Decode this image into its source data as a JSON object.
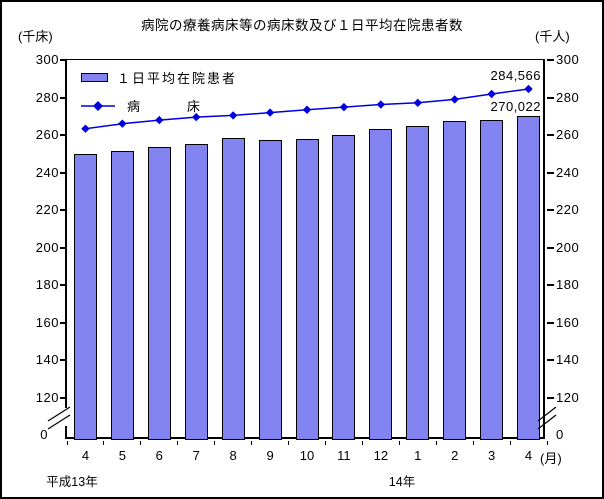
{
  "chart": {
    "title": "病院の療養病床等の病床数及び１日平均在院患者数",
    "left_unit": "(千床)",
    "right_unit": "(千人)",
    "month_unit": "(月)",
    "era_start": "平成13年",
    "era_mid": "14年"
  },
  "chart_data": {
    "type": "combo-bar-line",
    "categories": [
      "4",
      "5",
      "6",
      "7",
      "8",
      "9",
      "10",
      "11",
      "12",
      "1",
      "2",
      "3",
      "4"
    ],
    "series": [
      {
        "name": "１日平均在院患者",
        "type": "bar",
        "axis": "right (千人)",
        "color": "#8282F0",
        "values": [
          250.1,
          251.5,
          253.6,
          255.5,
          258.2,
          257.6,
          257.9,
          259.8,
          263.2,
          264.6,
          267.7,
          268.2,
          270.022
        ]
      },
      {
        "name": "病床",
        "legend_label": "病　　　床",
        "type": "line",
        "marker": "diamond",
        "axis": "left (千床)",
        "color": "#0000DD",
        "values": [
          263.4,
          266.1,
          268.0,
          269.6,
          270.5,
          272.0,
          273.5,
          274.9,
          276.3,
          277.2,
          279.0,
          281.9,
          284.566
        ]
      }
    ],
    "annotations": [
      {
        "text": "284,566",
        "target": "line, last point"
      },
      {
        "text": "270,022",
        "target": "bar, last point"
      }
    ],
    "y_ticks": [
      300,
      280,
      260,
      240,
      220,
      200,
      180,
      160,
      140,
      120
    ],
    "y_zero_label": "0",
    "y_display_range": [
      120,
      300
    ],
    "axis_break": true,
    "grid": false,
    "legend_position": "top-left-inside"
  }
}
